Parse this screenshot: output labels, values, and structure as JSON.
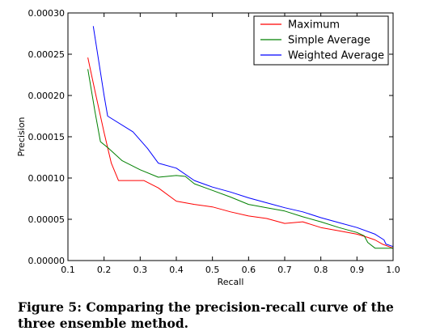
{
  "caption": "Figure 5: Comparing the precision-recall curve of the three ensemble method.",
  "chart_data": {
    "type": "line",
    "title": "",
    "xlabel": "Recall",
    "ylabel": "Precision",
    "xlim": [
      0.1,
      1.0
    ],
    "ylim": [
      0.0,
      0.0003
    ],
    "xticks": [
      "0.1",
      "0.2",
      "0.3",
      "0.4",
      "0.5",
      "0.6",
      "0.7",
      "0.8",
      "0.9",
      "1.0"
    ],
    "yticks": [
      "0.00000",
      "0.00005",
      "0.00010",
      "0.00015",
      "0.00020",
      "0.00025",
      "0.00030"
    ],
    "grid": false,
    "legend_position": "top-right",
    "series": [
      {
        "name": "Maximum",
        "color": "#ff0000",
        "points": [
          [
            0.155,
            0.000246
          ],
          [
            0.175,
            0.000205
          ],
          [
            0.2,
            0.000155
          ],
          [
            0.22,
            0.000118
          ],
          [
            0.24,
            9.7e-05
          ],
          [
            0.31,
            9.7e-05
          ],
          [
            0.35,
            8.8e-05
          ],
          [
            0.4,
            7.2e-05
          ],
          [
            0.45,
            6.8e-05
          ],
          [
            0.5,
            6.5e-05
          ],
          [
            0.55,
            5.9e-05
          ],
          [
            0.6,
            5.4e-05
          ],
          [
            0.65,
            5.1e-05
          ],
          [
            0.7,
            4.5e-05
          ],
          [
            0.75,
            4.7e-05
          ],
          [
            0.8,
            4e-05
          ],
          [
            0.85,
            3.6e-05
          ],
          [
            0.9,
            3.2e-05
          ],
          [
            0.93,
            2.8e-05
          ],
          [
            0.95,
            2.5e-05
          ],
          [
            0.97,
            2e-05
          ],
          [
            1.0,
            1.5e-05
          ]
        ]
      },
      {
        "name": "Simple Average",
        "color": "#008000",
        "points": [
          [
            0.155,
            0.000232
          ],
          [
            0.175,
            0.00018
          ],
          [
            0.19,
            0.000144
          ],
          [
            0.21,
            0.000137
          ],
          [
            0.25,
            0.000121
          ],
          [
            0.3,
            0.00011
          ],
          [
            0.35,
            0.000101
          ],
          [
            0.4,
            0.000103
          ],
          [
            0.425,
            0.000102
          ],
          [
            0.45,
            9.3e-05
          ],
          [
            0.5,
            8.5e-05
          ],
          [
            0.55,
            7.7e-05
          ],
          [
            0.6,
            6.8e-05
          ],
          [
            0.65,
            6.4e-05
          ],
          [
            0.7,
            6e-05
          ],
          [
            0.75,
            5.3e-05
          ],
          [
            0.8,
            4.7e-05
          ],
          [
            0.85,
            4e-05
          ],
          [
            0.9,
            3.4e-05
          ],
          [
            0.92,
            3e-05
          ],
          [
            0.93,
            2.2e-05
          ],
          [
            0.95,
            1.5e-05
          ],
          [
            1.0,
            1.5e-05
          ]
        ]
      },
      {
        "name": "Weighted Average",
        "color": "#0000ff",
        "points": [
          [
            0.17,
            0.000284
          ],
          [
            0.2,
            0.0002
          ],
          [
            0.21,
            0.000175
          ],
          [
            0.28,
            0.000156
          ],
          [
            0.32,
            0.000136
          ],
          [
            0.35,
            0.000118
          ],
          [
            0.4,
            0.000112
          ],
          [
            0.45,
            9.7e-05
          ],
          [
            0.5,
            8.9e-05
          ],
          [
            0.55,
            8.3e-05
          ],
          [
            0.6,
            7.6e-05
          ],
          [
            0.65,
            7e-05
          ],
          [
            0.7,
            6.4e-05
          ],
          [
            0.75,
            5.9e-05
          ],
          [
            0.8,
            5.2e-05
          ],
          [
            0.85,
            4.6e-05
          ],
          [
            0.9,
            4e-05
          ],
          [
            0.95,
            3.2e-05
          ],
          [
            0.975,
            2.5e-05
          ],
          [
            0.98,
            2e-05
          ],
          [
            1.0,
            1.7e-05
          ]
        ]
      }
    ]
  }
}
